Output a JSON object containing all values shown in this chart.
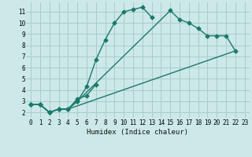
{
  "xlabel": "Humidex (Indice chaleur)",
  "background_color": "#cce8e8",
  "grid_color": "#aacccc",
  "line_color": "#1a7a6a",
  "xlim": [
    -0.5,
    23.5
  ],
  "ylim": [
    1.5,
    11.8
  ],
  "xticks": [
    0,
    1,
    2,
    3,
    4,
    5,
    6,
    7,
    8,
    9,
    10,
    11,
    12,
    13,
    14,
    15,
    16,
    17,
    18,
    19,
    20,
    21,
    22,
    23
  ],
  "yticks": [
    2,
    3,
    4,
    5,
    6,
    7,
    8,
    9,
    10,
    11
  ],
  "series1_x": [
    0,
    1,
    2,
    3,
    4,
    5,
    6,
    7,
    8,
    9,
    10,
    11,
    12,
    13
  ],
  "series1_y": [
    2.7,
    2.7,
    2.0,
    2.3,
    2.3,
    3.0,
    4.3,
    6.7,
    8.5,
    10.0,
    11.0,
    11.2,
    11.4,
    10.5
  ],
  "series2_x": [
    0,
    1,
    2,
    3,
    4,
    5,
    15,
    16,
    17,
    18,
    19,
    20,
    21,
    22
  ],
  "series2_y": [
    2.7,
    2.7,
    2.0,
    2.3,
    2.3,
    3.0,
    11.1,
    10.3,
    10.0,
    9.5,
    8.85,
    8.85,
    8.85,
    7.5
  ],
  "series3_x": [
    0,
    1,
    2,
    3,
    4,
    5,
    6,
    7
  ],
  "series3_y": [
    2.7,
    2.7,
    2.0,
    2.3,
    2.3,
    3.2,
    3.5,
    4.5
  ],
  "series4_x": [
    0,
    1,
    2,
    3,
    4,
    22
  ],
  "series4_y": [
    2.7,
    2.7,
    2.0,
    2.3,
    2.3,
    7.5
  ]
}
